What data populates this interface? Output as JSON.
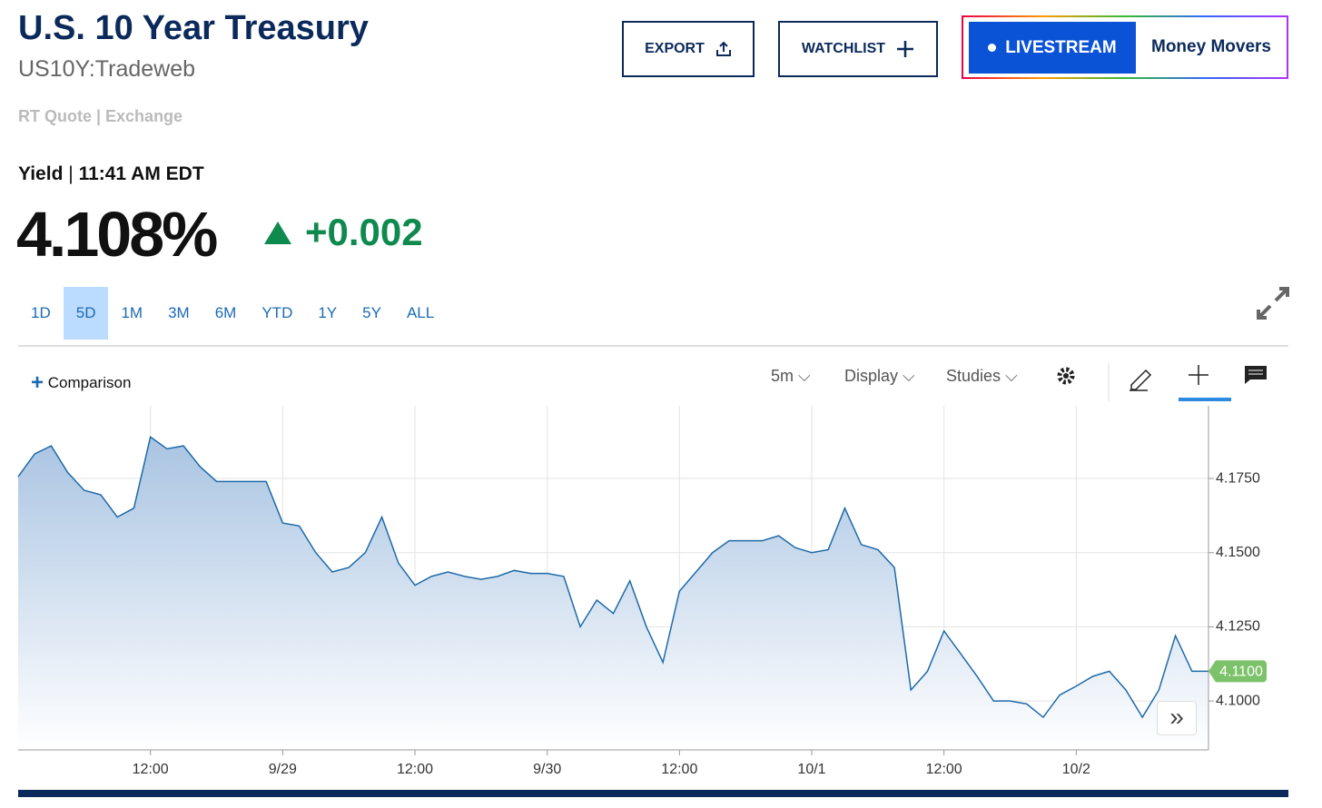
{
  "header": {
    "title": "U.S. 10 Year Treasury",
    "symbol": "US10Y:Tradeweb",
    "quote_source": "RT Quote | Exchange"
  },
  "buttons": {
    "export": "EXPORT",
    "watchlist": "WATCHLIST",
    "livestream": "LIVESTREAM",
    "money_movers": "Money Movers"
  },
  "quote": {
    "label": "Yield",
    "time": "11:41 AM EDT",
    "price": "4.108%",
    "change": "+0.002"
  },
  "ranges": {
    "items": [
      "1D",
      "5D",
      "1M",
      "3M",
      "6M",
      "YTD",
      "1Y",
      "5Y",
      "ALL"
    ],
    "selected": "5D"
  },
  "toolbar": {
    "comparison": "Comparison",
    "interval": "5m",
    "display": "Display",
    "studies": "Studies"
  },
  "chart_data": {
    "type": "area",
    "color": "#1f6aa8",
    "grid": true,
    "categories": [
      null,
      null,
      null,
      null,
      null,
      null,
      null,
      null,
      "12:00",
      null,
      null,
      null,
      null,
      null,
      null,
      null,
      "9/29",
      null,
      null,
      null,
      null,
      null,
      null,
      null,
      "12:00",
      null,
      null,
      null,
      null,
      null,
      null,
      null,
      "9/30",
      null,
      null,
      null,
      null,
      null,
      null,
      null,
      "12:00",
      null,
      null,
      null,
      null,
      null,
      null,
      null,
      "10/1",
      null,
      null,
      null,
      null,
      null,
      null,
      null,
      "12:00",
      null,
      null,
      null,
      null,
      null,
      null,
      null,
      "10/2",
      null,
      null,
      null,
      null,
      null,
      null,
      null,
      null
    ],
    "values": [
      4.1756,
      4.1833,
      4.186,
      4.177,
      4.171,
      4.1695,
      4.162,
      4.165,
      4.189,
      4.185,
      4.186,
      4.179,
      4.174,
      4.174,
      4.174,
      4.174,
      4.16,
      4.159,
      4.15,
      4.1435,
      4.145,
      4.15,
      4.162,
      4.1465,
      4.139,
      4.142,
      4.1435,
      4.142,
      4.141,
      4.142,
      4.144,
      4.143,
      4.143,
      4.142,
      4.125,
      4.134,
      4.1295,
      4.1405,
      4.125,
      4.113,
      4.137,
      4.1435,
      4.15,
      4.154,
      4.154,
      4.154,
      4.1557,
      4.1517,
      4.15,
      4.151,
      4.165,
      4.1527,
      4.151,
      4.145,
      4.1037,
      4.11,
      4.1236,
      4.116,
      4.1083,
      4.1,
      4.1,
      4.099,
      4.0945,
      4.102,
      4.105,
      4.1083,
      4.11,
      4.1037,
      4.0945,
      4.1037,
      4.122,
      4.11,
      4.11
    ],
    "ylim": [
      4.0835,
      4.1995
    ],
    "yticks": [
      {
        "value": 4.1,
        "label": "4.1000"
      },
      {
        "value": 4.125,
        "label": "4.1250"
      },
      {
        "value": 4.15,
        "label": "4.1500"
      },
      {
        "value": 4.175,
        "label": "4.1750"
      }
    ],
    "last_value_label": "4.1100"
  }
}
